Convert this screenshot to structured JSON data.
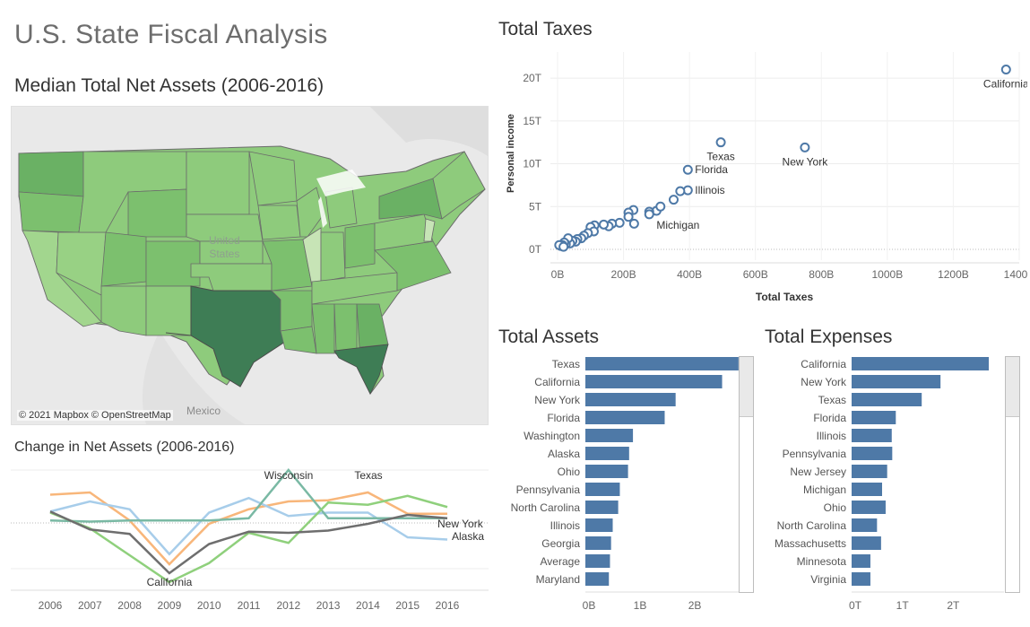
{
  "dashboard": {
    "title": "U.S. State Fiscal Analysis"
  },
  "map": {
    "title": "Median Total Net Assets (2006-2016)",
    "attribution": "© 2021 Mapbox © OpenStreetMap",
    "label_mexico": "Mexico",
    "label_united": "United",
    "label_states": "States",
    "colors": {
      "light": "#c7e4b6",
      "mid": "#8ecb7c",
      "dark": "#6ab164",
      "darkest": "#3e7d55",
      "land": "#e8e8e8",
      "water": "#ffffff"
    }
  },
  "line_chart": {
    "title": "Change in Net Assets (2006-2016)",
    "years": [
      "2006",
      "2007",
      "2008",
      "2009",
      "2010",
      "2011",
      "2012",
      "2013",
      "2014",
      "2015",
      "2016"
    ],
    "annotations": [
      "Wisconsin",
      "Texas",
      "California",
      "New York",
      "Alaska"
    ],
    "series": [
      {
        "name": "Texas",
        "color": "#f8b67a",
        "values": [
          78,
          80,
          55,
          16,
          52,
          65,
          72,
          73,
          80,
          61,
          61
        ]
      },
      {
        "name": "Alaska",
        "color": "#a7cdea",
        "values": [
          63,
          72,
          65,
          25,
          62,
          75,
          59,
          62,
          62,
          40,
          38
        ]
      },
      {
        "name": "Wisconsin",
        "color": "#7ab9a4",
        "values": [
          55,
          54,
          55,
          55,
          55,
          57,
          100,
          57,
          57,
          57,
          57
        ]
      },
      {
        "name": "California",
        "color": "#8fd07c",
        "values": [
          62,
          48,
          24,
          0,
          17,
          44,
          35,
          71,
          69,
          77,
          67
        ]
      },
      {
        "name": "New York",
        "color": "#6e6e6e",
        "values": [
          63,
          47,
          43,
          8,
          34,
          45,
          44,
          46,
          52,
          60,
          57
        ]
      }
    ]
  },
  "scatter": {
    "title": "Total Taxes",
    "xlabel": "Total Taxes",
    "ylabel": "Personal income",
    "x_ticks": [
      "0B",
      "200B",
      "400B",
      "600B",
      "800B",
      "1000B",
      "1200B",
      "1400B"
    ],
    "x_tick_values": [
      0,
      200,
      400,
      600,
      800,
      1000,
      1200,
      1400
    ],
    "y_ticks": [
      "0T",
      "5T",
      "10T",
      "15T",
      "20T"
    ],
    "y_tick_values": [
      0,
      5,
      10,
      15,
      20
    ],
    "xlim": [
      0,
      1400
    ],
    "ylim": [
      0,
      22
    ],
    "point_color": "#4e79a7",
    "points": [
      {
        "x": 1360,
        "y": 21.0,
        "label": "California"
      },
      {
        "x": 750,
        "y": 11.9,
        "label": "New York"
      },
      {
        "x": 495,
        "y": 12.5,
        "label": "Texas"
      },
      {
        "x": 395,
        "y": 9.3,
        "label": "Florida"
      },
      {
        "x": 395,
        "y": 6.9,
        "label": "Illinois"
      },
      {
        "x": 300,
        "y": 4.5,
        "label": "Michigan"
      },
      {
        "x": 372,
        "y": 6.8,
        "label": ""
      },
      {
        "x": 352,
        "y": 5.8,
        "label": ""
      },
      {
        "x": 312,
        "y": 5.0,
        "label": ""
      },
      {
        "x": 278,
        "y": 4.4,
        "label": ""
      },
      {
        "x": 278,
        "y": 4.1,
        "label": ""
      },
      {
        "x": 230,
        "y": 4.6,
        "label": ""
      },
      {
        "x": 215,
        "y": 4.3,
        "label": ""
      },
      {
        "x": 215,
        "y": 3.8,
        "label": ""
      },
      {
        "x": 232,
        "y": 3.0,
        "label": ""
      },
      {
        "x": 188,
        "y": 3.1,
        "label": ""
      },
      {
        "x": 165,
        "y": 3.0,
        "label": ""
      },
      {
        "x": 155,
        "y": 2.7,
        "label": ""
      },
      {
        "x": 140,
        "y": 2.9,
        "label": ""
      },
      {
        "x": 112,
        "y": 2.8,
        "label": ""
      },
      {
        "x": 100,
        "y": 2.6,
        "label": ""
      },
      {
        "x": 110,
        "y": 2.1,
        "label": ""
      },
      {
        "x": 92,
        "y": 1.9,
        "label": ""
      },
      {
        "x": 80,
        "y": 1.6,
        "label": ""
      },
      {
        "x": 72,
        "y": 1.3,
        "label": ""
      },
      {
        "x": 60,
        "y": 1.2,
        "label": ""
      },
      {
        "x": 55,
        "y": 0.9,
        "label": ""
      },
      {
        "x": 45,
        "y": 1.0,
        "label": ""
      },
      {
        "x": 38,
        "y": 0.7,
        "label": ""
      },
      {
        "x": 32,
        "y": 1.3,
        "label": ""
      },
      {
        "x": 25,
        "y": 0.6,
        "label": ""
      },
      {
        "x": 20,
        "y": 0.8,
        "label": ""
      },
      {
        "x": 15,
        "y": 0.5,
        "label": ""
      },
      {
        "x": 10,
        "y": 0.4,
        "label": ""
      },
      {
        "x": 5,
        "y": 0.5,
        "label": ""
      },
      {
        "x": 18,
        "y": 0.3,
        "label": ""
      }
    ]
  },
  "assets": {
    "title": "Total Assets",
    "x_ticks": [
      "0B",
      "1B",
      "2B"
    ],
    "x_tick_values": [
      0,
      1,
      2
    ],
    "xmax": 2.95,
    "bar_color": "#4e79a7",
    "categories": [
      "Texas",
      "California",
      "New York",
      "Florida",
      "Washington",
      "Alaska",
      "Ohio",
      "Pennsylvania",
      "North Carolina",
      "Illinois",
      "Georgia",
      "Average",
      "Maryland"
    ],
    "values": [
      2.8,
      2.5,
      1.65,
      1.45,
      0.87,
      0.8,
      0.78,
      0.63,
      0.6,
      0.5,
      0.47,
      0.45,
      0.43
    ]
  },
  "expenses": {
    "title": "Total Expenses",
    "x_ticks": [
      "0T",
      "1T",
      "2T"
    ],
    "x_tick_values": [
      0,
      1,
      2
    ],
    "xmax": 3.0,
    "bar_color": "#4e79a7",
    "categories": [
      "California",
      "New York",
      "Texas",
      "Florida",
      "Illinois",
      "Pennsylvania",
      "New Jersey",
      "Michigan",
      "Ohio",
      "North Carolina",
      "Massachusetts",
      "Minnesota",
      "Virginia"
    ],
    "values": [
      2.7,
      1.75,
      1.38,
      0.87,
      0.79,
      0.8,
      0.7,
      0.6,
      0.67,
      0.5,
      0.58,
      0.37,
      0.37
    ]
  }
}
